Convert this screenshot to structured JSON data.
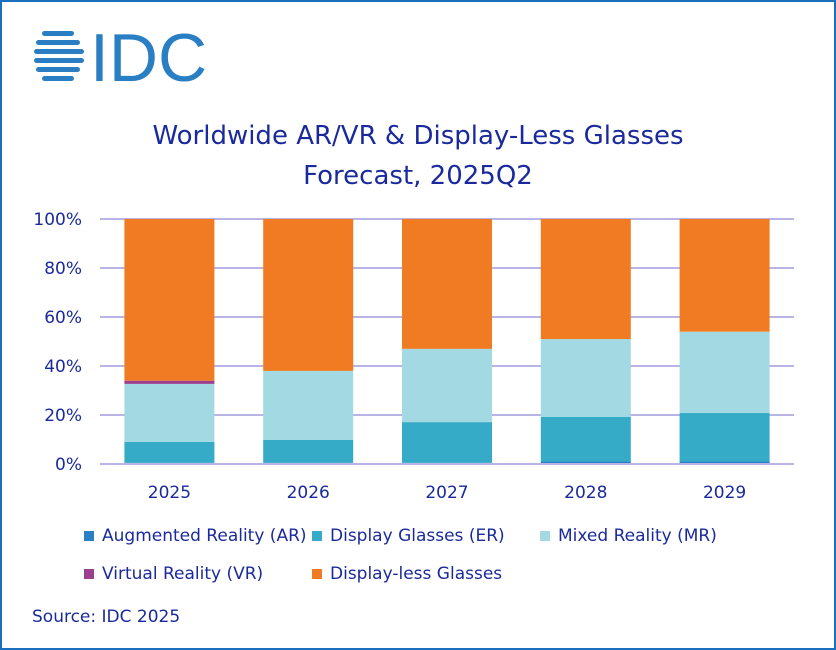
{
  "logo_text": "IDC",
  "chart_data": {
    "type": "bar",
    "stacked": true,
    "title": "Worldwide AR/VR & Display-Less Glasses Forecast, 2025Q2",
    "title_lines": [
      "Worldwide AR/VR & Display-Less Glasses",
      "Forecast, 2025Q2"
    ],
    "categories": [
      "2025",
      "2026",
      "2027",
      "2028",
      "2029"
    ],
    "ylim": [
      0,
      100
    ],
    "yticks": [
      "0%",
      "20%",
      "40%",
      "60%",
      "80%",
      "100%"
    ],
    "grid": true,
    "legend_placement": "bottom",
    "series": [
      {
        "name": "Augmented Reality (AR)",
        "color": "#2a7fc4",
        "values": [
          0.5,
          0.5,
          0.5,
          1.0,
          1.0
        ]
      },
      {
        "name": "Display Glasses (ER)",
        "color": "#36abc7",
        "values": [
          8.5,
          9.3,
          16.6,
          18.2,
          19.8
        ]
      },
      {
        "name": "Mixed Reality (MR)",
        "color": "#a2d9e3",
        "values": [
          23.7,
          28.2,
          29.9,
          31.8,
          33.2
        ]
      },
      {
        "name": "Virtual Reality (VR)",
        "color": "#9b3f8f",
        "values": [
          1.3,
          0,
          0,
          0,
          0
        ]
      },
      {
        "name": "Display-less Glasses",
        "color": "#f07b22",
        "values": [
          66.0,
          62.0,
          53.0,
          49.0,
          46.0
        ]
      }
    ]
  },
  "source": "Source: IDC 2025"
}
